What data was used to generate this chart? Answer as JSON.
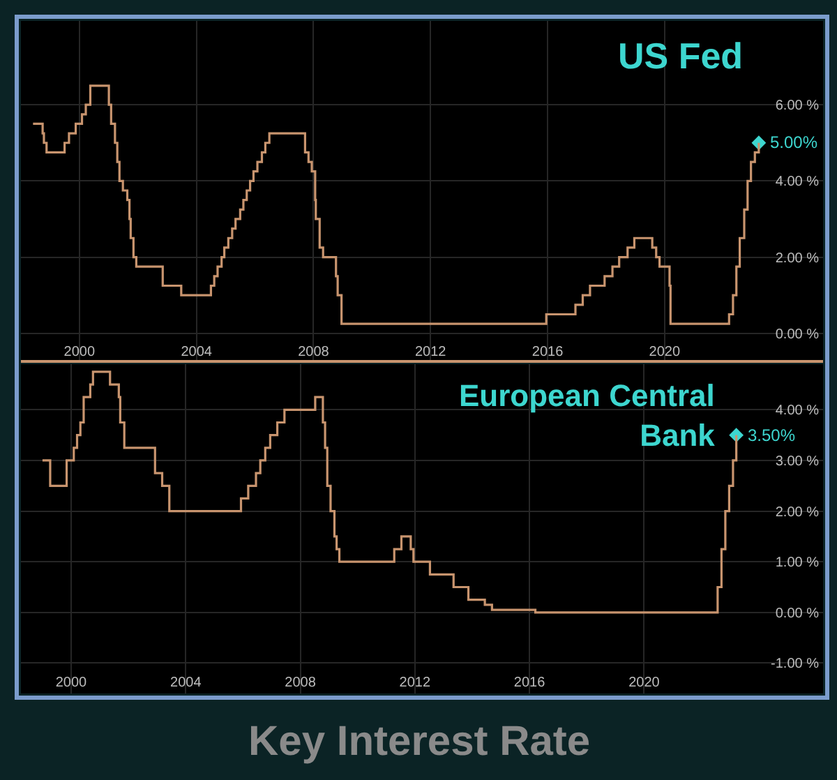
{
  "chart_data": [
    {
      "type": "step",
      "title": "US Fed",
      "x": [
        "1998-06-01",
        "1998-09-29",
        "1998-10-15",
        "1998-11-17",
        "1999-06-30",
        "1999-08-24",
        "1999-11-16",
        "2000-02-02",
        "2000-03-21",
        "2000-05-16",
        "2001-01-03",
        "2001-01-31",
        "2001-03-20",
        "2001-04-18",
        "2001-05-15",
        "2001-06-27",
        "2001-08-21",
        "2001-09-17",
        "2001-10-02",
        "2001-11-06",
        "2001-12-11",
        "2002-11-06",
        "2003-06-25",
        "2004-06-30",
        "2004-08-10",
        "2004-09-21",
        "2004-11-10",
        "2004-12-14",
        "2005-02-02",
        "2005-03-22",
        "2005-05-03",
        "2005-06-30",
        "2005-08-09",
        "2005-09-20",
        "2005-11-01",
        "2005-12-13",
        "2006-01-31",
        "2006-03-28",
        "2006-05-10",
        "2006-06-29",
        "2007-09-18",
        "2007-10-31",
        "2007-12-11",
        "2008-01-22",
        "2008-01-30",
        "2008-03-18",
        "2008-04-30",
        "2008-10-08",
        "2008-10-29",
        "2008-12-16",
        "2015-12-16",
        "2016-12-14",
        "2017-03-15",
        "2017-06-14",
        "2017-12-13",
        "2018-03-21",
        "2018-06-13",
        "2018-09-26",
        "2018-12-19",
        "2019-07-31",
        "2019-09-18",
        "2019-10-30",
        "2020-03-03",
        "2020-03-15",
        "2022-03-16",
        "2022-05-04",
        "2022-06-15",
        "2022-07-27",
        "2022-09-21",
        "2022-11-02",
        "2022-12-14",
        "2023-02-01",
        "2023-03-22"
      ],
      "series": [
        {
          "color": "#c8946e",
          "values": [
            5.5,
            5.25,
            5.0,
            4.75,
            5.0,
            5.25,
            5.5,
            5.75,
            6.0,
            6.5,
            6.0,
            5.5,
            5.0,
            4.5,
            4.0,
            3.75,
            3.5,
            3.0,
            2.5,
            2.0,
            1.75,
            1.25,
            1.0,
            1.25,
            1.5,
            1.75,
            2.0,
            2.25,
            2.5,
            2.75,
            3.0,
            3.25,
            3.5,
            3.75,
            4.0,
            4.25,
            4.5,
            4.75,
            5.0,
            5.25,
            4.75,
            4.5,
            4.25,
            3.5,
            3.0,
            2.25,
            2.0,
            1.5,
            1.0,
            0.25,
            0.5,
            0.75,
            1.0,
            1.25,
            1.5,
            1.75,
            2.0,
            2.25,
            2.5,
            2.25,
            2.0,
            1.75,
            1.25,
            0.25,
            0.5,
            1.0,
            1.75,
            2.5,
            3.25,
            4.0,
            4.5,
            4.75,
            5.0
          ]
        }
      ],
      "xlim": [
        "1998-01-01",
        "2025-06-01"
      ],
      "xticks": [
        {
          "value": "2000-01-01",
          "label": "2000"
        },
        {
          "value": "2004-01-01",
          "label": "2004"
        },
        {
          "value": "2008-01-01",
          "label": "2008"
        },
        {
          "value": "2012-01-01",
          "label": "2012"
        },
        {
          "value": "2016-01-01",
          "label": "2016"
        },
        {
          "value": "2020-01-01",
          "label": "2020"
        }
      ],
      "ylim": [
        -0.7,
        8.2
      ],
      "yticks": [
        {
          "value": 0,
          "label": "0.00 %"
        },
        {
          "value": 2,
          "label": "2.00 %"
        },
        {
          "value": 4,
          "label": "4.00 %"
        },
        {
          "value": 6,
          "label": "6.00 %"
        }
      ],
      "grid": true,
      "annotations": [
        {
          "text": "5.00%",
          "x": "2023-03-22",
          "y": 5.0
        }
      ]
    },
    {
      "type": "step",
      "title": "European Central Bank",
      "x": [
        "1999-01-01",
        "1999-04-09",
        "1999-11-05",
        "2000-02-04",
        "2000-03-17",
        "2000-04-28",
        "2000-06-09",
        "2000-09-01",
        "2000-10-06",
        "2001-05-11",
        "2001-08-31",
        "2001-09-18",
        "2001-11-09",
        "2002-12-06",
        "2003-03-07",
        "2003-06-06",
        "2005-12-06",
        "2006-03-08",
        "2006-06-15",
        "2006-08-09",
        "2006-10-11",
        "2006-12-13",
        "2007-03-14",
        "2007-06-13",
        "2008-07-09",
        "2008-10-15",
        "2008-11-12",
        "2008-12-10",
        "2009-01-21",
        "2009-03-11",
        "2009-04-08",
        "2009-05-13",
        "2011-04-13",
        "2011-07-13",
        "2011-11-09",
        "2011-12-14",
        "2012-07-11",
        "2013-05-08",
        "2013-11-13",
        "2014-06-11",
        "2014-09-10",
        "2016-03-16",
        "2022-07-27",
        "2022-09-14",
        "2022-11-02",
        "2022-12-21",
        "2023-02-08",
        "2023-03-22"
      ],
      "series": [
        {
          "color": "#c8946e",
          "values": [
            3.0,
            2.5,
            3.0,
            3.25,
            3.5,
            3.75,
            4.25,
            4.5,
            4.75,
            4.5,
            4.25,
            3.75,
            3.25,
            2.75,
            2.5,
            2.0,
            2.25,
            2.5,
            2.75,
            3.0,
            3.25,
            3.5,
            3.75,
            4.0,
            4.25,
            3.75,
            3.25,
            2.5,
            2.0,
            1.5,
            1.25,
            1.0,
            1.25,
            1.5,
            1.25,
            1.0,
            0.75,
            0.5,
            0.25,
            0.15,
            0.05,
            0.0,
            0.5,
            1.25,
            2.0,
            2.5,
            3.0,
            3.5
          ]
        }
      ],
      "xlim": [
        "1998-04-01",
        "2026-04-01"
      ],
      "xticks": [
        {
          "value": "2000-01-01",
          "label": "2000"
        },
        {
          "value": "2004-01-01",
          "label": "2004"
        },
        {
          "value": "2008-01-01",
          "label": "2008"
        },
        {
          "value": "2012-01-01",
          "label": "2012"
        },
        {
          "value": "2016-01-01",
          "label": "2016"
        },
        {
          "value": "2020-01-01",
          "label": "2020"
        }
      ],
      "ylim": [
        -1.6,
        4.9
      ],
      "yticks": [
        {
          "value": -1,
          "label": "-1.00 %"
        },
        {
          "value": 0,
          "label": "0.00 %"
        },
        {
          "value": 1,
          "label": "1.00 %"
        },
        {
          "value": 2,
          "label": "2.00 %"
        },
        {
          "value": 3,
          "label": "3.00 %"
        },
        {
          "value": 4,
          "label": "4.00 %"
        }
      ],
      "grid": true,
      "annotations": [
        {
          "text": "3.50%",
          "x": "2023-03-22",
          "y": 3.5
        },
        "Key Interest Rate"
      ]
    }
  ]
}
